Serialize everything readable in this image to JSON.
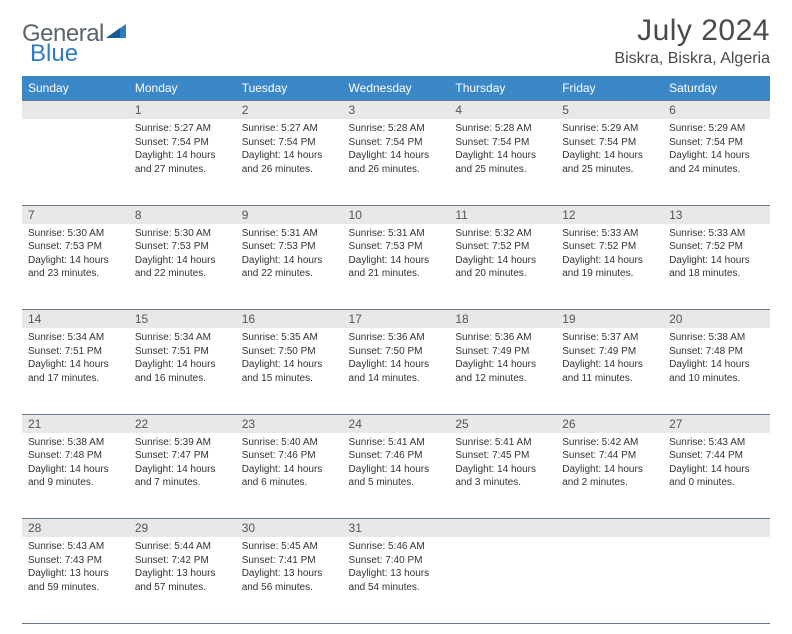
{
  "logo": {
    "text1": "General",
    "text2": "Blue"
  },
  "title": "July 2024",
  "location": "Biskra, Biskra, Algeria",
  "colors": {
    "header_bg": "#3b87c8",
    "header_text": "#ffffff",
    "daynum_bg": "#e8e8e8",
    "border": "#6a7a8a",
    "logo_gray": "#5a646c",
    "logo_blue": "#2f7bbf"
  },
  "weekdays": [
    "Sunday",
    "Monday",
    "Tuesday",
    "Wednesday",
    "Thursday",
    "Friday",
    "Saturday"
  ],
  "weeks": [
    {
      "nums": [
        "",
        "1",
        "2",
        "3",
        "4",
        "5",
        "6"
      ],
      "cells": [
        null,
        {
          "sunrise": "Sunrise: 5:27 AM",
          "sunset": "Sunset: 7:54 PM",
          "daylight": "Daylight: 14 hours and 27 minutes."
        },
        {
          "sunrise": "Sunrise: 5:27 AM",
          "sunset": "Sunset: 7:54 PM",
          "daylight": "Daylight: 14 hours and 26 minutes."
        },
        {
          "sunrise": "Sunrise: 5:28 AM",
          "sunset": "Sunset: 7:54 PM",
          "daylight": "Daylight: 14 hours and 26 minutes."
        },
        {
          "sunrise": "Sunrise: 5:28 AM",
          "sunset": "Sunset: 7:54 PM",
          "daylight": "Daylight: 14 hours and 25 minutes."
        },
        {
          "sunrise": "Sunrise: 5:29 AM",
          "sunset": "Sunset: 7:54 PM",
          "daylight": "Daylight: 14 hours and 25 minutes."
        },
        {
          "sunrise": "Sunrise: 5:29 AM",
          "sunset": "Sunset: 7:54 PM",
          "daylight": "Daylight: 14 hours and 24 minutes."
        }
      ]
    },
    {
      "nums": [
        "7",
        "8",
        "9",
        "10",
        "11",
        "12",
        "13"
      ],
      "cells": [
        {
          "sunrise": "Sunrise: 5:30 AM",
          "sunset": "Sunset: 7:53 PM",
          "daylight": "Daylight: 14 hours and 23 minutes."
        },
        {
          "sunrise": "Sunrise: 5:30 AM",
          "sunset": "Sunset: 7:53 PM",
          "daylight": "Daylight: 14 hours and 22 minutes."
        },
        {
          "sunrise": "Sunrise: 5:31 AM",
          "sunset": "Sunset: 7:53 PM",
          "daylight": "Daylight: 14 hours and 22 minutes."
        },
        {
          "sunrise": "Sunrise: 5:31 AM",
          "sunset": "Sunset: 7:53 PM",
          "daylight": "Daylight: 14 hours and 21 minutes."
        },
        {
          "sunrise": "Sunrise: 5:32 AM",
          "sunset": "Sunset: 7:52 PM",
          "daylight": "Daylight: 14 hours and 20 minutes."
        },
        {
          "sunrise": "Sunrise: 5:33 AM",
          "sunset": "Sunset: 7:52 PM",
          "daylight": "Daylight: 14 hours and 19 minutes."
        },
        {
          "sunrise": "Sunrise: 5:33 AM",
          "sunset": "Sunset: 7:52 PM",
          "daylight": "Daylight: 14 hours and 18 minutes."
        }
      ]
    },
    {
      "nums": [
        "14",
        "15",
        "16",
        "17",
        "18",
        "19",
        "20"
      ],
      "cells": [
        {
          "sunrise": "Sunrise: 5:34 AM",
          "sunset": "Sunset: 7:51 PM",
          "daylight": "Daylight: 14 hours and 17 minutes."
        },
        {
          "sunrise": "Sunrise: 5:34 AM",
          "sunset": "Sunset: 7:51 PM",
          "daylight": "Daylight: 14 hours and 16 minutes."
        },
        {
          "sunrise": "Sunrise: 5:35 AM",
          "sunset": "Sunset: 7:50 PM",
          "daylight": "Daylight: 14 hours and 15 minutes."
        },
        {
          "sunrise": "Sunrise: 5:36 AM",
          "sunset": "Sunset: 7:50 PM",
          "daylight": "Daylight: 14 hours and 14 minutes."
        },
        {
          "sunrise": "Sunrise: 5:36 AM",
          "sunset": "Sunset: 7:49 PM",
          "daylight": "Daylight: 14 hours and 12 minutes."
        },
        {
          "sunrise": "Sunrise: 5:37 AM",
          "sunset": "Sunset: 7:49 PM",
          "daylight": "Daylight: 14 hours and 11 minutes."
        },
        {
          "sunrise": "Sunrise: 5:38 AM",
          "sunset": "Sunset: 7:48 PM",
          "daylight": "Daylight: 14 hours and 10 minutes."
        }
      ]
    },
    {
      "nums": [
        "21",
        "22",
        "23",
        "24",
        "25",
        "26",
        "27"
      ],
      "cells": [
        {
          "sunrise": "Sunrise: 5:38 AM",
          "sunset": "Sunset: 7:48 PM",
          "daylight": "Daylight: 14 hours and 9 minutes."
        },
        {
          "sunrise": "Sunrise: 5:39 AM",
          "sunset": "Sunset: 7:47 PM",
          "daylight": "Daylight: 14 hours and 7 minutes."
        },
        {
          "sunrise": "Sunrise: 5:40 AM",
          "sunset": "Sunset: 7:46 PM",
          "daylight": "Daylight: 14 hours and 6 minutes."
        },
        {
          "sunrise": "Sunrise: 5:41 AM",
          "sunset": "Sunset: 7:46 PM",
          "daylight": "Daylight: 14 hours and 5 minutes."
        },
        {
          "sunrise": "Sunrise: 5:41 AM",
          "sunset": "Sunset: 7:45 PM",
          "daylight": "Daylight: 14 hours and 3 minutes."
        },
        {
          "sunrise": "Sunrise: 5:42 AM",
          "sunset": "Sunset: 7:44 PM",
          "daylight": "Daylight: 14 hours and 2 minutes."
        },
        {
          "sunrise": "Sunrise: 5:43 AM",
          "sunset": "Sunset: 7:44 PM",
          "daylight": "Daylight: 14 hours and 0 minutes."
        }
      ]
    },
    {
      "nums": [
        "28",
        "29",
        "30",
        "31",
        "",
        "",
        ""
      ],
      "cells": [
        {
          "sunrise": "Sunrise: 5:43 AM",
          "sunset": "Sunset: 7:43 PM",
          "daylight": "Daylight: 13 hours and 59 minutes."
        },
        {
          "sunrise": "Sunrise: 5:44 AM",
          "sunset": "Sunset: 7:42 PM",
          "daylight": "Daylight: 13 hours and 57 minutes."
        },
        {
          "sunrise": "Sunrise: 5:45 AM",
          "sunset": "Sunset: 7:41 PM",
          "daylight": "Daylight: 13 hours and 56 minutes."
        },
        {
          "sunrise": "Sunrise: 5:46 AM",
          "sunset": "Sunset: 7:40 PM",
          "daylight": "Daylight: 13 hours and 54 minutes."
        },
        null,
        null,
        null
      ]
    }
  ]
}
